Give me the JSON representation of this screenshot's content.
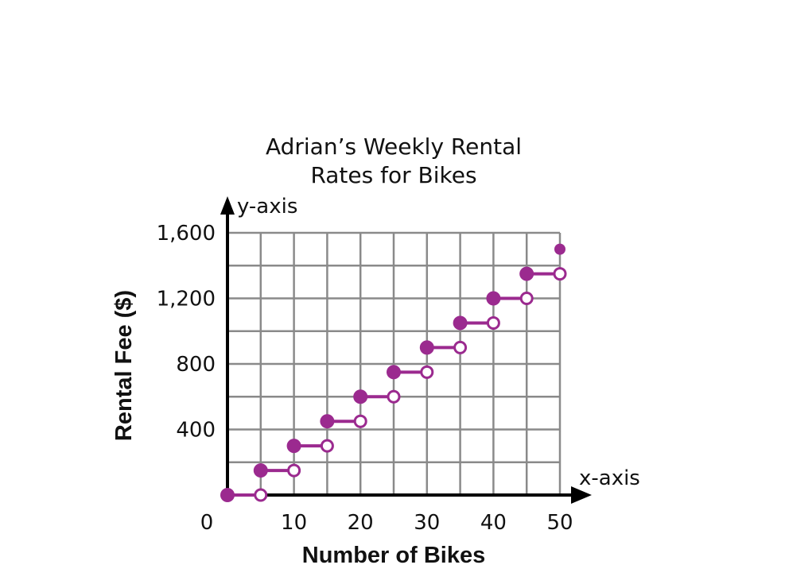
{
  "chart_data": {
    "type": "line",
    "title_lines": [
      "Adrian’s Weekly Rental",
      "Rates for Bikes"
    ],
    "xlabel": "Number of Bikes",
    "ylabel": "Rental Fee ($)",
    "x_axis_name": "x-axis",
    "y_axis_name": "y-axis",
    "origin_label": "0",
    "xlim": [
      0,
      50
    ],
    "ylim": [
      0,
      1600
    ],
    "x_ticks": [
      {
        "value": 10,
        "label": "10"
      },
      {
        "value": 20,
        "label": "20"
      },
      {
        "value": 30,
        "label": "30"
      },
      {
        "value": 40,
        "label": "40"
      },
      {
        "value": 50,
        "label": "50"
      }
    ],
    "y_ticks": [
      {
        "value": 400,
        "label": "400"
      },
      {
        "value": 800,
        "label": "800"
      },
      {
        "value": 1200,
        "label": "1,200"
      },
      {
        "value": 1600,
        "label": "1,600"
      }
    ],
    "grid_x_step": 5,
    "grid_y_step": 200,
    "grid": true,
    "steps": [
      {
        "x_start": 0,
        "x_end": 5,
        "y": 0
      },
      {
        "x_start": 5,
        "x_end": 10,
        "y": 150
      },
      {
        "x_start": 10,
        "x_end": 15,
        "y": 300
      },
      {
        "x_start": 15,
        "x_end": 20,
        "y": 450
      },
      {
        "x_start": 20,
        "x_end": 25,
        "y": 600
      },
      {
        "x_start": 25,
        "x_end": 30,
        "y": 750
      },
      {
        "x_start": 30,
        "x_end": 35,
        "y": 900
      },
      {
        "x_start": 35,
        "x_end": 40,
        "y": 1050
      },
      {
        "x_start": 40,
        "x_end": 45,
        "y": 1200
      },
      {
        "x_start": 45,
        "x_end": 50,
        "y": 1350
      }
    ],
    "final_point": {
      "x": 50,
      "y": 1500
    },
    "colors": {
      "series": "#9b2a8f",
      "grid": "#8a8a8a",
      "axis": "#000000"
    }
  }
}
